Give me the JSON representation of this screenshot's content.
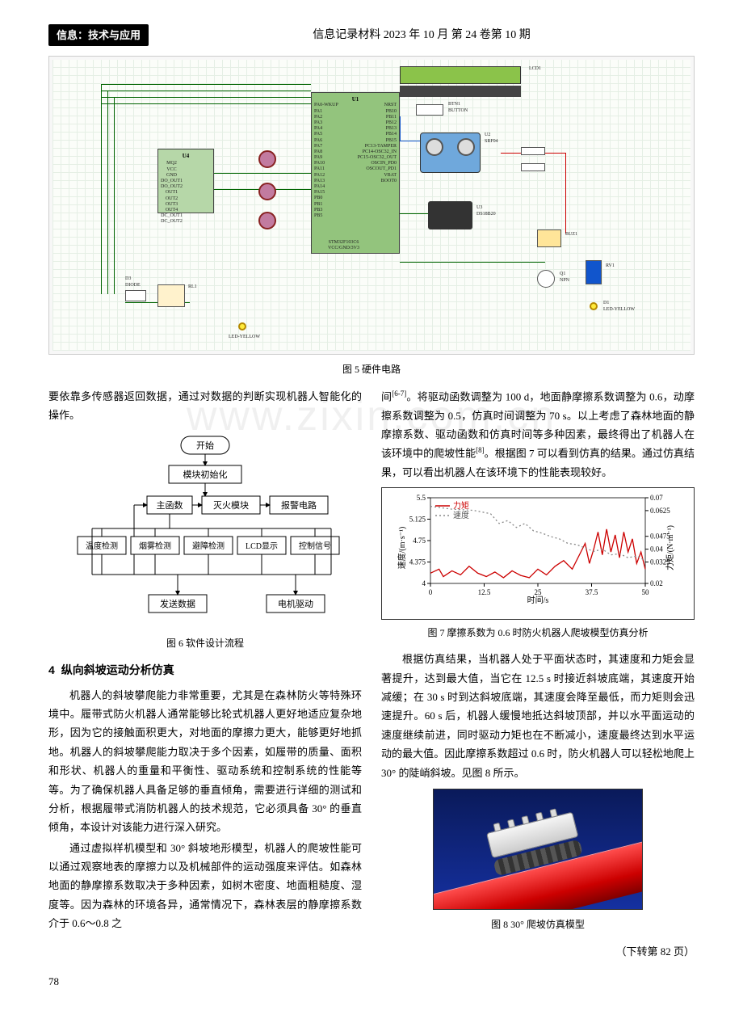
{
  "header": {
    "tag": "信息：技术与应用",
    "journal": "信息记录材料 2023 年 10 月 第 24 卷第 10 期"
  },
  "circuit": {
    "caption": "图 5  硬件电路",
    "mcu_label": "U1",
    "driver_label": "U4",
    "lcd_label": "LCD1",
    "sensor_label": "U2\nSRF04",
    "ds_label": "U3\nDS18B20",
    "btn_label": "BTN1\nBUTTON",
    "buzzer_label": "BUZ1",
    "led_y_label": "LED-YELLOW",
    "diode_label": "D3\nDIODE",
    "relay_label": "RL1",
    "transistor_label": "Q1\nNPN",
    "rv_label": "RV1",
    "d1_label": "D1\nLED-YELLOW",
    "r_labels": [
      "R1",
      "R2",
      "R3",
      "R18"
    ],
    "pins_left": "MQ2\nVCC\nGND\nDO_OUT1\nDO_OUT2\nOUT1\nOUT2\nOUT3\nOUT4\nDC_OUT1\nDC_OUT2",
    "pins_mcu_left": "PA0-WKUP\nPA1\nPA2\nPA3\nPA4\nPA5\nPA6\nPA7\nPA8\nPA9\nPA10\nPA11\nPA12\nPA13\nPA14\nPA15\nPB0\nPB1\nPB3\nPB5",
    "pins_mcu_right": "NRST\nPB10\nPB11\nPB12\nPB13\nPB14\nPB15\nPC13-TAMPER\nPC14-OSC32_IN\nPC15-OSC32_OUT\nOSCIN_PD0\nOSCOUT_PD1\nVBAT\nBOOT0",
    "model": "STM32F103C6\nVCC/GND/3V3"
  },
  "watermark": "www.zixin.com.cn",
  "col1": {
    "para1": "要依靠多传感器返回数据，通过对数据的判断实现机器人智能化的操作。",
    "flow": {
      "caption": "图 6  软件设计流程",
      "nodes": {
        "start": "开始",
        "init": "模块初始化",
        "main": "主函数",
        "fire": "灭火模块",
        "alarm": "报警电路",
        "temp": "温度检测",
        "smoke": "烟雾检测",
        "obstacle": "避障检测",
        "lcd": "LCD显示",
        "ctrl": "控制信号",
        "send": "发送数据",
        "motor": "电机驱动"
      }
    },
    "section4": {
      "num": "4",
      "title": "纵向斜坡运动分析仿真"
    },
    "para2": "机器人的斜坡攀爬能力非常重要，尤其是在森林防火等特殊环境中。履带式防火机器人通常能够比轮式机器人更好地适应复杂地形，因为它的接触面积更大，对地面的摩擦力更大，能够更好地抓地。机器人的斜坡攀爬能力取决于多个因素，如履带的质量、面积和形状、机器人的重量和平衡性、驱动系统和控制系统的性能等等。为了确保机器人具备足够的垂直倾角，需要进行详细的测试和分析，根据履带式消防机器人的技术规范，它必须具备 30° 的垂直倾角，本设计对该能力进行深入研究。",
    "para3": "通过虚拟样机模型和 30° 斜坡地形模型，机器人的爬坡性能可以通过观察地表的摩擦力以及机械部件的运动强度来评估。如森林地面的静摩擦系数取决于多种因素，如树木密度、地面粗糙度、湿度等。因为森林的环境各异，通常情况下，森林表层的静摩擦系数介于 0.6～0.8 之"
  },
  "col2": {
    "para1_a": "间",
    "para1_ref": "[6-7]",
    "para1_b": "。将驱动函数调整为 100 d，地面静摩擦系数调整为 0.6，动摩擦系数调整为 0.5，仿真时间调整为 70 s。以上考虑了森林地面的静摩擦系数、驱动函数和仿真时间等多种因素，最终得出了机器人在该环境中的爬坡性能",
    "para1_ref2": "[8]",
    "para1_c": "。根据图 7 可以看到仿真的结果。通过仿真结果，可以看出机器人在该环境下的性能表现较好。",
    "chart": {
      "caption": "图 7  摩擦系数为 0.6 时防火机器人爬坡模型仿真分析",
      "legend": [
        "力矩",
        "速度"
      ],
      "xlabel": "时间/s",
      "ylabel_left": "速度/(m·s⁻¹)",
      "ylabel_right": "力矩/(N·m⁻¹)",
      "xlim": [
        0,
        50
      ],
      "xticks": [
        0,
        12.5,
        25.0,
        37.5,
        50.0
      ],
      "yleft_lim": [
        4.0,
        5.5
      ],
      "yleft_ticks": [
        4.0,
        4.375,
        4.75,
        5.125,
        5.5
      ],
      "yright_lim": [
        0.02,
        0.07
      ],
      "yright_ticks": [
        0.02,
        0.0325,
        0.04,
        0.0475,
        0.0625,
        0.07
      ],
      "torque_color": "#cc0000",
      "speed_color": "#888888",
      "torque_series": [
        [
          0,
          4.18
        ],
        [
          2,
          4.25
        ],
        [
          3,
          4.12
        ],
        [
          5,
          4.22
        ],
        [
          7,
          4.15
        ],
        [
          9,
          4.3
        ],
        [
          11,
          4.18
        ],
        [
          13,
          4.12
        ],
        [
          15,
          4.2
        ],
        [
          17,
          4.1
        ],
        [
          19,
          4.22
        ],
        [
          21,
          4.14
        ],
        [
          23,
          4.1
        ],
        [
          25,
          4.25
        ],
        [
          27,
          4.15
        ],
        [
          29,
          4.3
        ],
        [
          31,
          4.4
        ],
        [
          33,
          4.25
        ],
        [
          35,
          4.55
        ],
        [
          36,
          4.7
        ],
        [
          37,
          4.35
        ],
        [
          38,
          4.6
        ],
        [
          39,
          4.9
        ],
        [
          40,
          4.5
        ],
        [
          41,
          4.95
        ],
        [
          42,
          4.55
        ],
        [
          43,
          4.85
        ],
        [
          44,
          4.45
        ],
        [
          45,
          4.9
        ],
        [
          46,
          4.55
        ],
        [
          47,
          4.78
        ],
        [
          48,
          4.35
        ],
        [
          49,
          4.55
        ],
        [
          50,
          4.25
        ]
      ],
      "speed_series": [
        [
          0,
          5.35
        ],
        [
          5,
          5.3
        ],
        [
          10,
          5.28
        ],
        [
          14,
          5.22
        ],
        [
          16,
          5.05
        ],
        [
          18,
          5.1
        ],
        [
          20,
          4.98
        ],
        [
          22,
          5.05
        ],
        [
          24,
          4.92
        ],
        [
          26,
          4.88
        ],
        [
          28,
          4.82
        ],
        [
          30,
          4.78
        ],
        [
          32,
          4.7
        ],
        [
          34,
          4.68
        ],
        [
          36,
          4.62
        ],
        [
          38,
          4.56
        ],
        [
          40,
          4.6
        ],
        [
          42,
          4.5
        ],
        [
          44,
          4.52
        ],
        [
          46,
          4.45
        ],
        [
          48,
          4.48
        ],
        [
          50,
          4.4
        ]
      ]
    },
    "para2": "根据仿真结果，当机器人处于平面状态时，其速度和力矩会显著提升，达到最大值，当它在 12.5 s 时接近斜坡底端，其速度开始减缓；在 30 s 时到达斜坡底端，其速度会降至最低，而力矩则会迅速提升。60 s 后，机器人缓慢地抵达斜坡顶部，并以水平面运动的速度继续前进，同时驱动力矩也在不断减小，速度最终达到水平运动的最大值。因此摩擦系数超过 0.6 时，防火机器人可以轻松地爬上 30° 的陡峭斜坡。见图 8 所示。",
    "fig8_caption": "图 8  30° 爬坡仿真模型",
    "continue": "（下转第 82 页）"
  },
  "page": "78"
}
